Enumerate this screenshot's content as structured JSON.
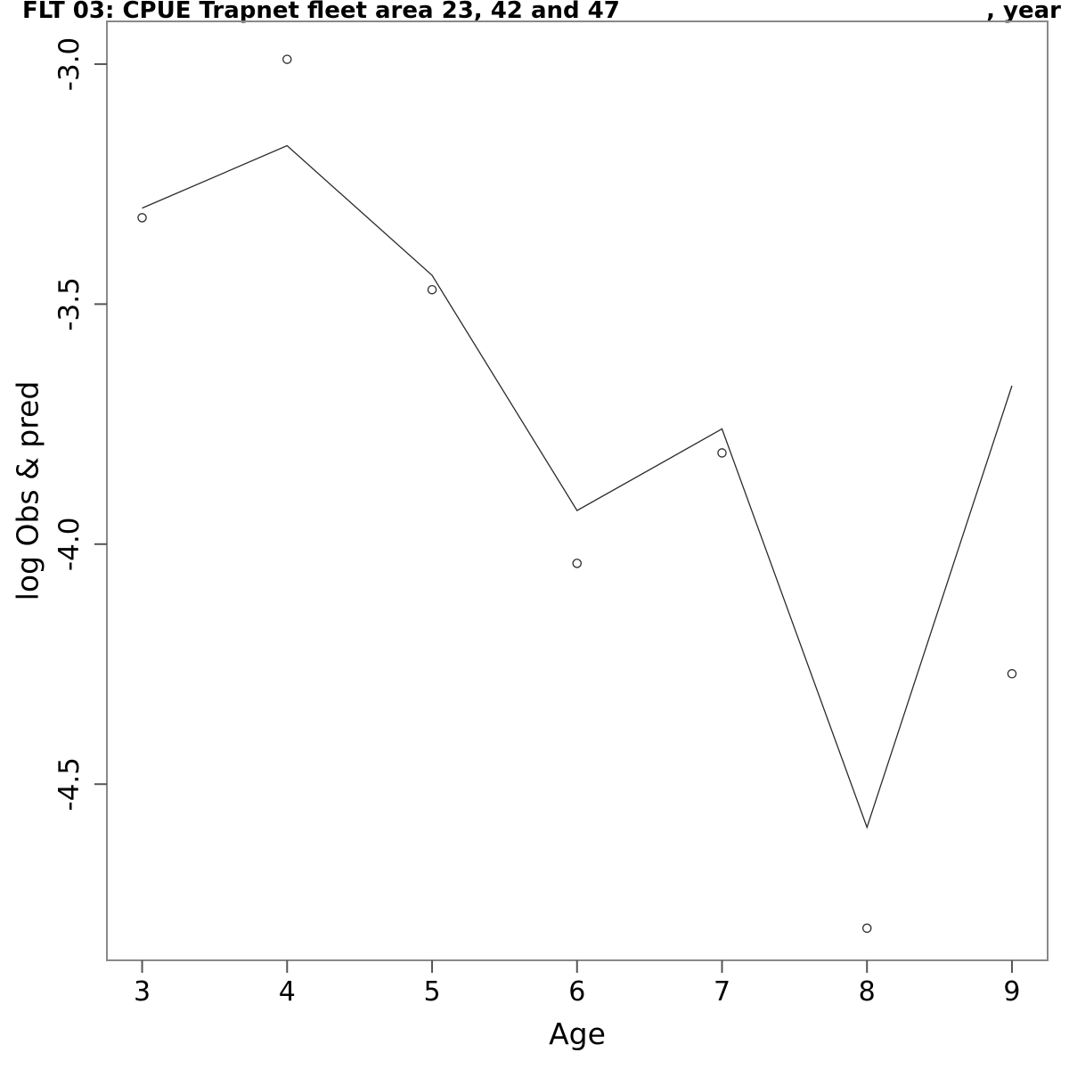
{
  "header": {
    "title_left": "FLT 03: CPUE Trapnet fleet area 23, 42 and 47",
    "title_right": ", year"
  },
  "chart_data": {
    "type": "line",
    "title": "FLT 03: CPUE Trapnet fleet area 23, 42 and 47",
    "title_suffix_right": ", year",
    "xlabel": "Age",
    "ylabel": "log Obs & pred",
    "x": [
      3,
      4,
      5,
      6,
      7,
      8,
      9
    ],
    "series": [
      {
        "name": "log Obs",
        "type": "scatter",
        "marker": "open-circle",
        "values": [
          -3.32,
          -2.99,
          -3.47,
          -4.04,
          -3.81,
          -4.8,
          -4.27
        ]
      },
      {
        "name": "log pred",
        "type": "line",
        "values": [
          -3.3,
          -3.17,
          -3.44,
          -3.93,
          -3.76,
          -4.59,
          -3.67
        ]
      }
    ],
    "x_ticks": [
      {
        "v": 3,
        "label": "3"
      },
      {
        "v": 4,
        "label": "4"
      },
      {
        "v": 5,
        "label": "5"
      },
      {
        "v": 6,
        "label": "6"
      },
      {
        "v": 7,
        "label": "7"
      },
      {
        "v": 8,
        "label": "8"
      },
      {
        "v": 9,
        "label": "9"
      }
    ],
    "y_ticks": [
      {
        "v": -3.0,
        "label": "-3.0"
      },
      {
        "v": -3.5,
        "label": "-3.5"
      },
      {
        "v": -4.0,
        "label": "-4.0"
      },
      {
        "v": -4.5,
        "label": "-4.5"
      }
    ],
    "xlim": [
      2.757,
      9.246
    ],
    "ylim": [
      -4.867,
      -2.911
    ],
    "grid": false,
    "legend": "none",
    "colors": {
      "data": "#2b2b2b",
      "axis_box": "#898989",
      "tick": "#555555",
      "text": "#000000"
    }
  }
}
